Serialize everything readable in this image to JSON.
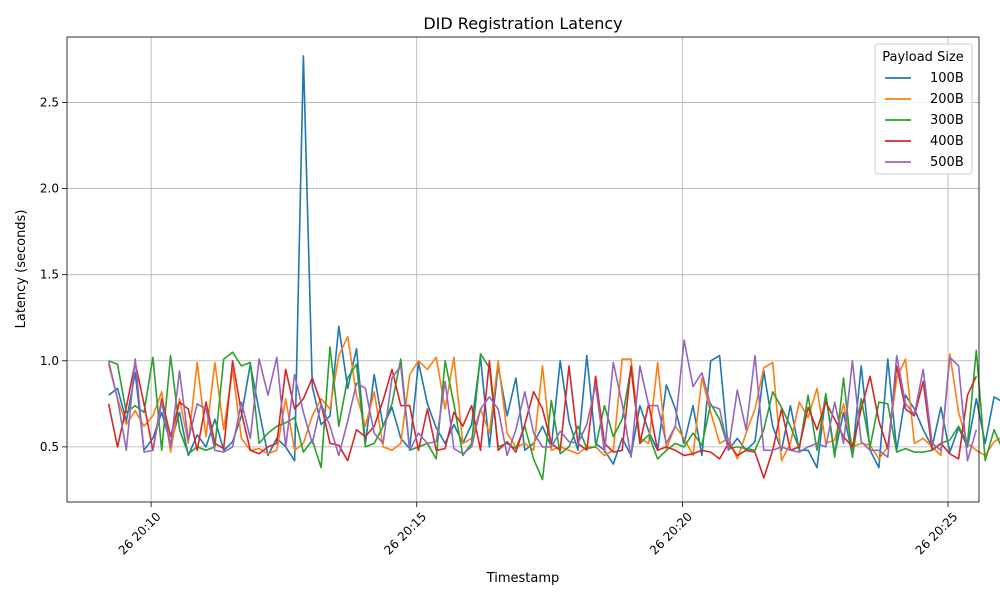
{
  "chart_data": {
    "type": "line",
    "title": "DID Registration Latency",
    "xlabel": "Timestamp",
    "ylabel": "Latency (seconds)",
    "x_start": "26 20:09:12",
    "x_step_seconds": 10,
    "x_ticks": [
      {
        "time": "26 20:10:00",
        "label": "26 20:10"
      },
      {
        "time": "26 20:15:00",
        "label": "26 20:15"
      },
      {
        "time": "26 20:20:00",
        "label": "26 20:20"
      },
      {
        "time": "26 20:25:00",
        "label": "26 20:25"
      }
    ],
    "xlim": [
      "26 20:08:25",
      "26 20:25:35"
    ],
    "y_ticks": [
      {
        "value": 0.5,
        "label": "0.5"
      },
      {
        "value": 1.0,
        "label": "1.0"
      },
      {
        "value": 1.5,
        "label": "1.5"
      },
      {
        "value": 2.0,
        "label": "2.0"
      },
      {
        "value": 2.5,
        "label": "2.5"
      }
    ],
    "ylim": [
      0.18,
      2.88
    ],
    "grid": true,
    "legend": {
      "title": "Payload Size",
      "position": "top-right"
    },
    "series": [
      {
        "name": "100B",
        "color": "#1f77b4",
        "values": [
          0.8,
          0.84,
          0.65,
          0.93,
          0.48,
          0.55,
          0.7,
          0.52,
          0.7,
          0.45,
          0.57,
          0.5,
          0.66,
          0.48,
          0.53,
          0.68,
          0.98,
          0.71,
          0.45,
          0.55,
          0.5,
          0.42,
          2.77,
          0.85,
          0.63,
          0.68,
          1.2,
          0.84,
          1.07,
          0.52,
          0.92,
          0.62,
          0.73,
          0.55,
          0.49,
          0.99,
          0.75,
          0.61,
          0.52,
          0.63,
          0.52,
          0.63,
          1.02,
          0.5,
          0.97,
          0.68,
          0.9,
          0.48,
          0.52,
          0.62,
          0.5,
          1.0,
          0.65,
          0.48,
          1.03,
          0.52,
          0.48,
          0.4,
          0.55,
          0.45,
          0.74,
          0.59,
          0.48,
          0.86,
          0.72,
          0.52,
          0.74,
          0.45,
          1.0,
          1.03,
          0.48,
          0.55,
          0.48,
          0.53,
          0.94,
          0.62,
          0.48,
          0.74,
          0.48,
          0.48,
          0.38,
          0.8,
          0.46,
          0.7,
          0.45,
          0.97,
          0.48,
          0.38,
          1.01,
          0.48,
          0.8,
          0.72,
          0.6,
          0.5,
          0.73,
          0.47,
          0.61,
          0.5,
          0.78,
          0.52,
          0.79,
          0.76,
          0.83,
          0.94,
          0.67,
          0.78,
          0.76,
          0.55,
          0.77,
          0.44
        ]
      },
      {
        "name": "200B",
        "color": "#ff7f0e",
        "values": [
          0.98,
          0.78,
          0.63,
          0.71,
          0.62,
          0.68,
          0.82,
          0.47,
          0.78,
          0.52,
          0.99,
          0.56,
          0.99,
          0.6,
          0.95,
          0.55,
          0.48,
          0.49,
          0.46,
          0.48,
          0.78,
          0.48,
          0.52,
          0.68,
          0.78,
          0.72,
          1.03,
          1.14,
          0.8,
          0.62,
          0.82,
          0.5,
          0.48,
          0.52,
          0.92,
          1.0,
          0.95,
          1.02,
          0.72,
          1.02,
          0.52,
          0.55,
          0.72,
          0.58,
          1.0,
          0.58,
          0.5,
          0.52,
          0.48,
          0.97,
          0.48,
          0.5,
          0.48,
          0.46,
          0.5,
          0.5,
          0.45,
          0.48,
          1.01,
          1.01,
          0.55,
          0.52,
          0.99,
          0.49,
          0.62,
          0.55,
          0.45,
          0.9,
          0.7,
          0.52,
          0.55,
          0.43,
          0.58,
          0.72,
          0.96,
          0.99,
          0.42,
          0.52,
          0.76,
          0.67,
          0.84,
          0.52,
          0.54,
          0.75,
          0.5,
          0.52,
          0.51,
          0.43,
          0.5,
          0.9,
          1.01,
          0.52,
          0.55,
          0.5,
          0.45,
          1.04,
          0.7,
          0.52,
          0.48,
          0.45,
          0.53,
          0.56,
          0.78,
          0.68,
          1.02,
          1.1,
          1.28,
          0.72,
          0.52,
          0.86
        ]
      },
      {
        "name": "300B",
        "color": "#2ca02c",
        "values": [
          1.0,
          0.98,
          0.7,
          0.74,
          0.7,
          1.02,
          0.48,
          1.03,
          0.6,
          0.46,
          0.5,
          0.48,
          0.5,
          1.01,
          1.05,
          0.97,
          0.99,
          0.52,
          0.58,
          0.62,
          0.64,
          0.67,
          0.47,
          0.54,
          0.38,
          1.08,
          0.62,
          0.9,
          0.98,
          0.5,
          0.52,
          0.62,
          0.75,
          1.01,
          0.48,
          0.5,
          0.52,
          0.43,
          1.0,
          0.75,
          0.45,
          0.52,
          1.04,
          0.96,
          0.5,
          0.52,
          0.49,
          0.62,
          0.43,
          0.31,
          0.77,
          0.46,
          0.5,
          0.62,
          0.49,
          0.5,
          0.74,
          0.56,
          0.66,
          0.96,
          0.52,
          0.57,
          0.43,
          0.48,
          0.52,
          0.5,
          0.58,
          0.51,
          0.75,
          0.66,
          0.49,
          0.5,
          0.49,
          0.48,
          0.6,
          0.82,
          0.73,
          0.62,
          0.49,
          0.8,
          0.48,
          0.81,
          0.44,
          0.9,
          0.44,
          0.78,
          0.5,
          0.76,
          0.75,
          0.47,
          0.49,
          0.47,
          0.47,
          0.48,
          0.52,
          0.54,
          0.62,
          0.52,
          1.06,
          0.42,
          0.6,
          0.48,
          1.1,
          0.5,
          0.5,
          1.09,
          0.53,
          0.56,
          0.9
        ]
      },
      {
        "name": "400B",
        "color": "#d62728",
        "values": [
          0.75,
          0.5,
          0.73,
          0.99,
          0.75,
          0.48,
          0.78,
          0.56,
          0.76,
          0.72,
          0.48,
          0.76,
          0.52,
          0.49,
          1.0,
          0.7,
          0.48,
          0.46,
          0.5,
          0.52,
          0.95,
          0.72,
          0.78,
          0.9,
          0.75,
          0.52,
          0.51,
          0.42,
          0.6,
          0.56,
          0.62,
          0.77,
          0.95,
          0.74,
          0.74,
          0.48,
          0.72,
          0.48,
          0.49,
          0.7,
          0.62,
          0.74,
          0.48,
          1.0,
          0.48,
          0.53,
          0.47,
          0.63,
          0.82,
          0.72,
          0.52,
          0.48,
          0.97,
          0.52,
          0.48,
          0.91,
          0.52,
          0.47,
          0.48,
          0.97,
          0.52,
          0.75,
          0.48,
          0.5,
          0.48,
          0.45,
          0.46,
          0.48,
          0.47,
          0.43,
          0.52,
          0.45,
          0.48,
          0.47,
          0.32,
          0.48,
          0.72,
          0.48,
          0.5,
          0.73,
          0.6,
          0.76,
          0.66,
          0.56,
          0.5,
          0.72,
          0.91,
          0.65,
          0.49,
          0.97,
          0.72,
          0.68,
          0.88,
          0.48,
          0.52,
          0.46,
          0.43,
          0.8,
          0.91
        ]
      },
      {
        "name": "500B",
        "color": "#9467bd",
        "values": [
          1.0,
          0.78,
          0.48,
          1.01,
          0.47,
          0.48,
          0.76,
          0.5,
          0.94,
          0.54,
          0.75,
          0.72,
          0.48,
          0.47,
          0.5,
          0.76,
          0.55,
          1.01,
          0.8,
          1.02,
          0.5,
          0.92,
          0.7,
          0.52,
          0.75,
          0.62,
          0.45,
          0.65,
          0.87,
          0.84,
          0.58,
          0.52,
          0.9,
          0.97,
          0.48,
          0.58,
          0.52,
          0.53,
          0.88,
          0.49,
          0.46,
          0.5,
          0.72,
          0.79,
          0.72,
          0.45,
          0.6,
          0.82,
          0.58,
          0.5,
          0.5,
          0.59,
          0.53,
          0.52,
          0.63,
          0.86,
          0.47,
          0.99,
          0.75,
          0.44,
          0.97,
          0.74,
          0.74,
          0.52,
          0.62,
          1.12,
          0.85,
          0.93,
          0.74,
          0.72,
          0.48,
          0.83,
          0.6,
          1.03,
          0.48,
          0.48,
          0.5,
          0.48,
          0.47,
          0.5,
          0.52,
          0.5,
          0.76,
          0.52,
          1.0,
          0.53,
          0.48,
          0.48,
          0.44,
          1.03,
          0.75,
          0.69,
          0.95,
          0.52,
          0.48,
          1.02,
          0.97,
          0.42,
          0.6
        ]
      }
    ]
  }
}
